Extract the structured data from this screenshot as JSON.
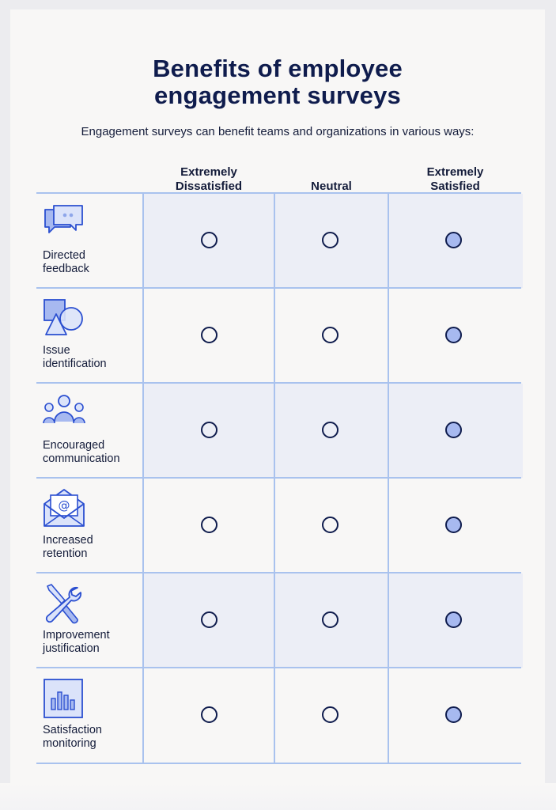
{
  "title_lines": [
    "Benefits of employee",
    "engagement surveys"
  ],
  "subtitle": "Engagement surveys can benefit teams and organizations in various ways:",
  "columns": [
    {
      "lines": [
        "Extremely",
        "Dissatisfied"
      ]
    },
    {
      "lines": [
        "Neutral"
      ]
    },
    {
      "lines": [
        "Extremely",
        "Satisfied"
      ]
    }
  ],
  "rows": [
    {
      "label_lines": [
        "Directed",
        "feedback"
      ],
      "icon": "speech-bubbles-icon",
      "selected": "Extremely Satisfied"
    },
    {
      "label_lines": [
        "Issue",
        "identification"
      ],
      "icon": "shapes-icon",
      "selected": "Extremely Satisfied"
    },
    {
      "label_lines": [
        "Encouraged",
        "communication"
      ],
      "icon": "people-group-icon",
      "selected": "Extremely Satisfied"
    },
    {
      "label_lines": [
        "Increased",
        "retention"
      ],
      "icon": "email-envelope-icon",
      "selected": "Extremely Satisfied"
    },
    {
      "label_lines": [
        "Improvement",
        "justification"
      ],
      "icon": "tools-icon",
      "selected": "Extremely Satisfied"
    },
    {
      "label_lines": [
        "Satisfaction",
        "monitoring"
      ],
      "icon": "bar-chart-icon",
      "selected": "Extremely Satisfied"
    }
  ],
  "colors": {
    "accent": "#a7b9f0",
    "navy": "#0f1c4d",
    "grid_line": "#a9c2ee",
    "row_shade": "#eceef6"
  }
}
